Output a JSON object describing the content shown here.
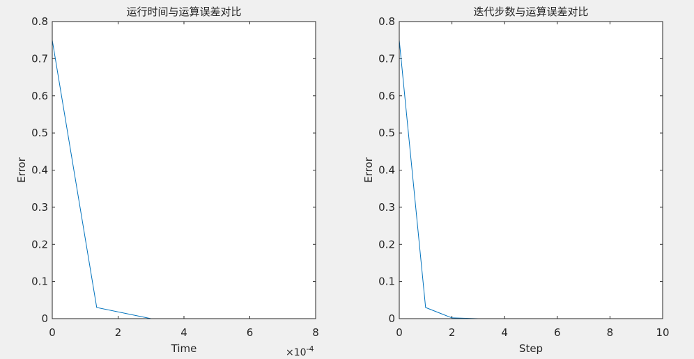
{
  "chart_data": [
    {
      "type": "line",
      "title": "运行时间与运算误差对比",
      "xlabel": "Time",
      "ylabel": "Error",
      "x_exponent_label": "×10",
      "x_exponent_power": "-4",
      "xlim": [
        0,
        8
      ],
      "ylim": [
        0,
        0.8
      ],
      "xticks": [
        "0",
        "2",
        "4",
        "6",
        "8"
      ],
      "yticks": [
        "0",
        "0.1",
        "0.2",
        "0.3",
        "0.4",
        "0.5",
        "0.6",
        "0.7",
        "0.8"
      ],
      "grid": false,
      "color": "#0072bd",
      "series": [
        {
          "x": [
            0,
            1.35,
            3.0,
            7.3
          ],
          "y": [
            0.75,
            0.03,
            0.0,
            0.0
          ]
        },
        {
          "x": [
            0,
            7.3
          ],
          "y": [
            0.0,
            0.0
          ]
        }
      ]
    },
    {
      "type": "line",
      "title": "迭代步数与运算误差对比",
      "xlabel": "Step",
      "ylabel": "Error",
      "xlim": [
        0,
        10
      ],
      "ylim": [
        0,
        0.8
      ],
      "xticks": [
        "0",
        "2",
        "4",
        "6",
        "8",
        "10"
      ],
      "yticks": [
        "0",
        "0.1",
        "0.2",
        "0.3",
        "0.4",
        "0.5",
        "0.6",
        "0.7",
        "0.8"
      ],
      "grid": false,
      "color": "#0072bd",
      "series": [
        {
          "x": [
            0,
            1,
            2,
            3,
            4,
            5,
            6,
            7,
            8,
            9
          ],
          "y": [
            0.75,
            0.03,
            0.002,
            0.0,
            0.0,
            0.0,
            0.0,
            0.0,
            0.0,
            0.0
          ]
        },
        {
          "x": [
            0,
            9
          ],
          "y": [
            0.0,
            0.0
          ]
        }
      ]
    }
  ]
}
